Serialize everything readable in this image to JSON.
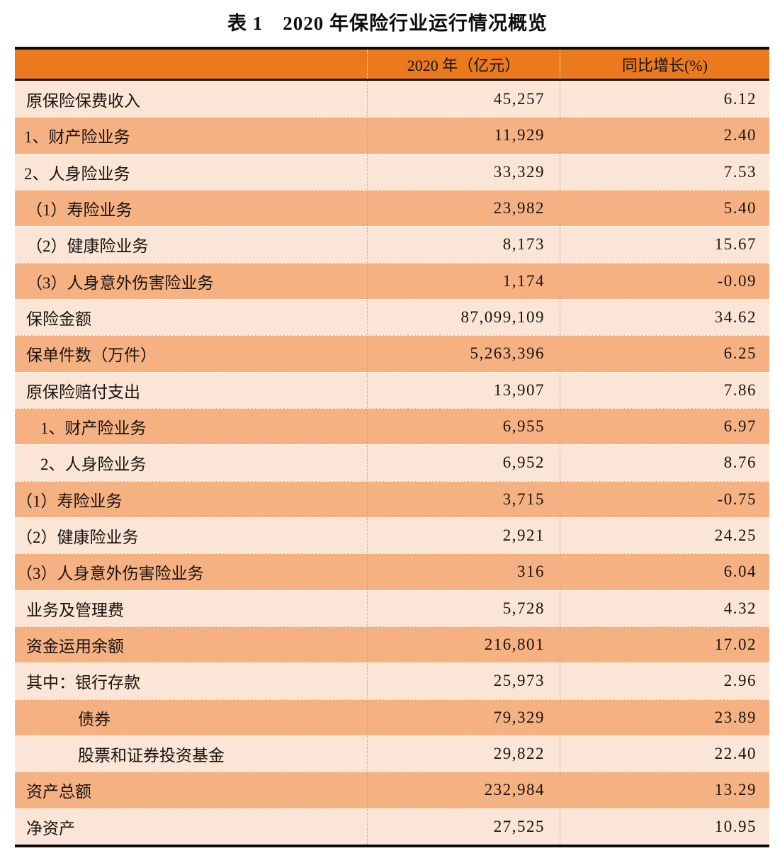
{
  "title": "表 1　2020 年保险行业运行情况概览",
  "colors": {
    "header_bg": "#eb7a1e",
    "row_light": "#fbe5d6",
    "row_medium": "#f6b183",
    "border": "#0a0a0a",
    "text": "#171310"
  },
  "table": {
    "header": {
      "label_col": "",
      "year_col": "2020 年（亿元）",
      "growth_col": "同比增长(%)"
    },
    "rows": [
      {
        "label": "原保险保费收入",
        "indent": "base",
        "value_2020": "45,257",
        "yoy_growth": "6.12"
      },
      {
        "label": "1、财产险业务",
        "indent": "num1",
        "value_2020": "11,929",
        "yoy_growth": "2.40"
      },
      {
        "label": "2、人身险业务",
        "indent": "num1",
        "value_2020": "33,329",
        "yoy_growth": "7.53"
      },
      {
        "label": "（1）寿险业务",
        "indent": "paren1",
        "value_2020": "23,982",
        "yoy_growth": "5.40"
      },
      {
        "label": "（2）健康险业务",
        "indent": "paren1",
        "value_2020": "8,173",
        "yoy_growth": "15.67"
      },
      {
        "label": "（3）人身意外伤害险业务",
        "indent": "paren1",
        "value_2020": "1,174",
        "yoy_growth": "-0.09"
      },
      {
        "label": "保险金额",
        "indent": "base",
        "value_2020": "87,099,109",
        "yoy_growth": "34.62"
      },
      {
        "label": "保单件数（万件）",
        "indent": "base",
        "value_2020": "5,263,396",
        "yoy_growth": "6.25"
      },
      {
        "label": "原保险赔付支出",
        "indent": "base",
        "value_2020": "13,907",
        "yoy_growth": "7.86"
      },
      {
        "label": "1、财产险业务",
        "indent": "num2",
        "value_2020": "6,955",
        "yoy_growth": "6.97"
      },
      {
        "label": "2、人身险业务",
        "indent": "num2",
        "value_2020": "6,952",
        "yoy_growth": "8.76"
      },
      {
        "label": "（1）寿险业务",
        "indent": "paren2",
        "value_2020": "3,715",
        "yoy_growth": "-0.75"
      },
      {
        "label": "（2）健康险业务",
        "indent": "paren2",
        "value_2020": "2,921",
        "yoy_growth": "24.25"
      },
      {
        "label": "（3）人身意外伤害险业务",
        "indent": "paren2",
        "value_2020": "316",
        "yoy_growth": "6.04"
      },
      {
        "label": "业务及管理费",
        "indent": "base",
        "value_2020": "5,728",
        "yoy_growth": "4.32"
      },
      {
        "label": "资金运用余额",
        "indent": "base",
        "value_2020": "216,801",
        "yoy_growth": "17.02"
      },
      {
        "label": "其中：银行存款",
        "indent": "base",
        "value_2020": "25,973",
        "yoy_growth": "2.96"
      },
      {
        "label": "债券",
        "indent": "sub",
        "value_2020": "79,329",
        "yoy_growth": "23.89"
      },
      {
        "label": "股票和证券投资基金",
        "indent": "sub",
        "value_2020": "29,822",
        "yoy_growth": "22.40"
      },
      {
        "label": "资产总额",
        "indent": "base",
        "value_2020": "232,984",
        "yoy_growth": "13.29"
      },
      {
        "label": "净资产",
        "indent": "base",
        "value_2020": "27,525",
        "yoy_growth": "10.95"
      }
    ]
  }
}
